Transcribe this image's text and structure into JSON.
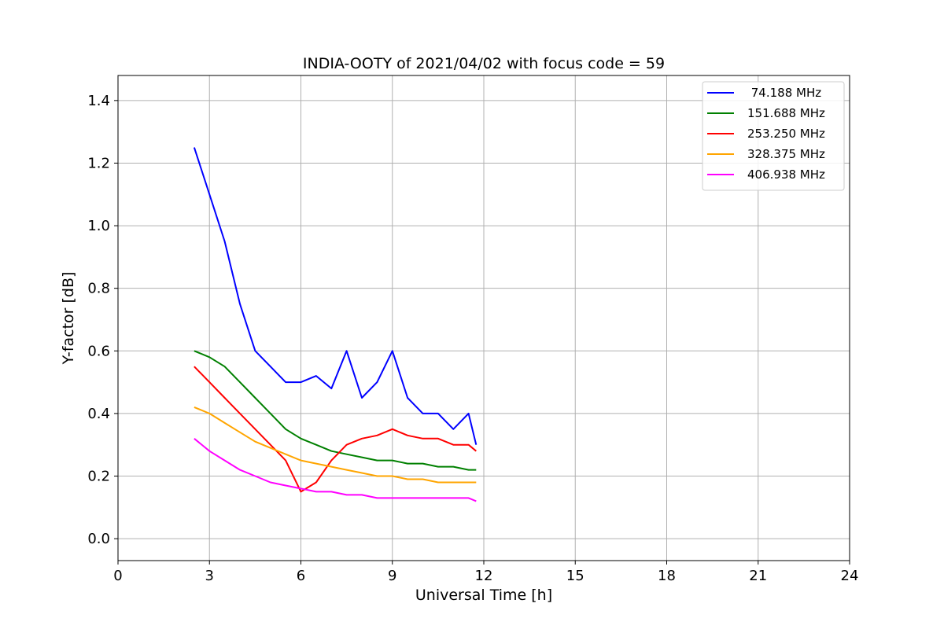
{
  "chart_data": {
    "type": "line",
    "title": "INDIA-OOTY of 2021/04/02 with focus code = 59",
    "xlabel": "Universal Time [h]",
    "ylabel": "Y-factor [dB]",
    "xlim": [
      0,
      24
    ],
    "ylim": [
      -0.07,
      1.48
    ],
    "xticks": [
      0,
      3,
      6,
      9,
      12,
      15,
      18,
      21,
      24
    ],
    "yticks": [
      0.0,
      0.2,
      0.4,
      0.6,
      0.8,
      1.0,
      1.2,
      1.4
    ],
    "xtick_labels": [
      "0",
      "3",
      "6",
      "9",
      "12",
      "15",
      "18",
      "21",
      "24"
    ],
    "ytick_labels": [
      "0.0",
      "0.2",
      "0.4",
      "0.6",
      "0.8",
      "1.0",
      "1.2",
      "1.4"
    ],
    "grid": true,
    "legend_position": "top-right",
    "series": [
      {
        "name": " 74.188 MHz",
        "color": "#0000ff",
        "x": [
          2.5,
          3.0,
          3.5,
          4.0,
          4.5,
          5.0,
          5.5,
          6.0,
          6.5,
          7.0,
          7.5,
          8.0,
          8.5,
          9.0,
          9.5,
          10.0,
          10.5,
          11.0,
          11.5,
          11.75
        ],
        "y": [
          1.25,
          1.1,
          0.95,
          0.75,
          0.6,
          0.55,
          0.5,
          0.5,
          0.52,
          0.48,
          0.6,
          0.45,
          0.5,
          0.6,
          0.45,
          0.4,
          0.4,
          0.35,
          0.4,
          0.3
        ]
      },
      {
        "name": "151.688 MHz",
        "color": "#008000",
        "x": [
          2.5,
          3.0,
          3.5,
          4.0,
          4.5,
          5.0,
          5.5,
          6.0,
          6.5,
          7.0,
          7.5,
          8.0,
          8.5,
          9.0,
          9.5,
          10.0,
          10.5,
          11.0,
          11.5,
          11.75
        ],
        "y": [
          0.6,
          0.58,
          0.55,
          0.5,
          0.45,
          0.4,
          0.35,
          0.32,
          0.3,
          0.28,
          0.27,
          0.26,
          0.25,
          0.25,
          0.24,
          0.24,
          0.23,
          0.23,
          0.22,
          0.22
        ]
      },
      {
        "name": "253.250 MHz",
        "color": "#ff0000",
        "x": [
          2.5,
          3.0,
          3.5,
          4.0,
          4.5,
          5.0,
          5.5,
          6.0,
          6.5,
          7.0,
          7.5,
          8.0,
          8.5,
          9.0,
          9.5,
          10.0,
          10.5,
          11.0,
          11.5,
          11.75
        ],
        "y": [
          0.55,
          0.5,
          0.45,
          0.4,
          0.35,
          0.3,
          0.25,
          0.15,
          0.18,
          0.25,
          0.3,
          0.32,
          0.33,
          0.35,
          0.33,
          0.32,
          0.32,
          0.3,
          0.3,
          0.28
        ]
      },
      {
        "name": "328.375 MHz",
        "color": "#ffa500",
        "x": [
          2.5,
          3.0,
          3.5,
          4.0,
          4.5,
          5.0,
          5.5,
          6.0,
          6.5,
          7.0,
          7.5,
          8.0,
          8.5,
          9.0,
          9.5,
          10.0,
          10.5,
          11.0,
          11.5,
          11.75
        ],
        "y": [
          0.42,
          0.4,
          0.37,
          0.34,
          0.31,
          0.29,
          0.27,
          0.25,
          0.24,
          0.23,
          0.22,
          0.21,
          0.2,
          0.2,
          0.19,
          0.19,
          0.18,
          0.18,
          0.18,
          0.18
        ]
      },
      {
        "name": "406.938 MHz",
        "color": "#ff00ff",
        "x": [
          2.5,
          3.0,
          3.5,
          4.0,
          4.5,
          5.0,
          5.5,
          6.0,
          6.5,
          7.0,
          7.5,
          8.0,
          8.5,
          9.0,
          9.5,
          10.0,
          10.5,
          11.0,
          11.5,
          11.75
        ],
        "y": [
          0.32,
          0.28,
          0.25,
          0.22,
          0.2,
          0.18,
          0.17,
          0.16,
          0.15,
          0.15,
          0.14,
          0.14,
          0.13,
          0.13,
          0.13,
          0.13,
          0.13,
          0.13,
          0.13,
          0.12
        ]
      }
    ]
  }
}
